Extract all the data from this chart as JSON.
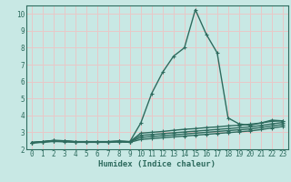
{
  "title": "",
  "xlabel": "Humidex (Indice chaleur)",
  "ylabel": "",
  "bg_color": "#c8e8e4",
  "plot_bg_color": "#c8e8e4",
  "grid_color": "#e8c8c8",
  "line_color": "#2e6b5e",
  "spine_color": "#2e6b5e",
  "xlim": [
    -0.5,
    23.5
  ],
  "ylim": [
    2.0,
    10.5
  ],
  "yticks": [
    2,
    3,
    4,
    5,
    6,
    7,
    8,
    9,
    10
  ],
  "xticks": [
    0,
    1,
    2,
    3,
    4,
    5,
    6,
    7,
    8,
    9,
    10,
    11,
    12,
    13,
    14,
    15,
    16,
    17,
    18,
    19,
    20,
    21,
    22,
    23
  ],
  "lines": [
    [
      2.4,
      2.45,
      2.52,
      2.5,
      2.45,
      2.45,
      2.45,
      2.45,
      2.48,
      2.45,
      3.55,
      5.3,
      6.55,
      7.5,
      8.0,
      10.25,
      8.8,
      7.7,
      3.85,
      3.5,
      3.42,
      3.55,
      3.72,
      3.68
    ],
    [
      2.4,
      2.45,
      2.52,
      2.5,
      2.45,
      2.45,
      2.45,
      2.45,
      2.48,
      2.45,
      2.95,
      3.0,
      3.05,
      3.12,
      3.18,
      3.22,
      3.28,
      3.32,
      3.38,
      3.42,
      3.48,
      3.55,
      3.65,
      3.68
    ],
    [
      2.4,
      2.44,
      2.5,
      2.48,
      2.44,
      2.44,
      2.44,
      2.44,
      2.46,
      2.44,
      2.82,
      2.87,
      2.92,
      2.97,
      3.02,
      3.07,
      3.12,
      3.17,
      3.22,
      3.27,
      3.32,
      3.4,
      3.5,
      3.58
    ],
    [
      2.38,
      2.43,
      2.48,
      2.46,
      2.43,
      2.43,
      2.43,
      2.43,
      2.45,
      2.43,
      2.7,
      2.75,
      2.8,
      2.85,
      2.9,
      2.95,
      3.0,
      3.05,
      3.1,
      3.15,
      3.2,
      3.28,
      3.38,
      3.46
    ],
    [
      2.36,
      2.41,
      2.46,
      2.44,
      2.41,
      2.41,
      2.41,
      2.41,
      2.43,
      2.41,
      2.58,
      2.63,
      2.68,
      2.73,
      2.78,
      2.83,
      2.88,
      2.93,
      2.98,
      3.03,
      3.08,
      3.16,
      3.26,
      3.34
    ]
  ],
  "marker": "+",
  "marker_size": 3.5,
  "line_width": 1.0,
  "tick_fontsize": 5.5,
  "xlabel_fontsize": 6.5,
  "tick_color": "#2e6b5e"
}
